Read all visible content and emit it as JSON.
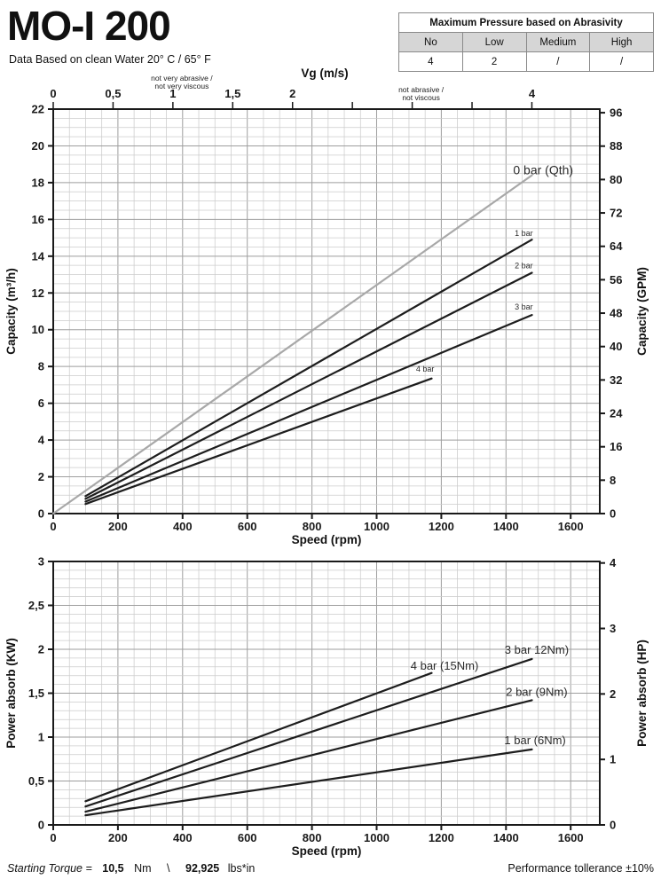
{
  "header": {
    "title": "MO-I 200",
    "subtitle": "Data Based on clean Water 20° C  /  65° F"
  },
  "abrasivity_table": {
    "title": "Maximum Pressure based on Abrasivity",
    "columns": [
      "No",
      "Low",
      "Medium",
      "High"
    ],
    "values": [
      "4",
      "2",
      "/",
      "/"
    ],
    "header_fill": "#d6d6d6"
  },
  "footer": {
    "starting_torque_label": "Starting Torque =",
    "torque_nm_value": "10,5",
    "torque_nm_unit": "Nm",
    "separator": "\\",
    "torque_lbs_value": "92,925",
    "torque_lbs_unit": "lbs*in",
    "tolerance": "Performance tollerance ±10%"
  },
  "colors": {
    "line_dark": "#1d1d1d",
    "line_qth_gray": "#a8a8a8",
    "grid_minor": "#cccccc",
    "grid_major": "#9e9e9e",
    "axis": "#1a1a1a"
  },
  "chart_data": [
    {
      "id": "capacity",
      "type": "line",
      "xlabel": "Speed (rpm)",
      "ylabel": "Capacity (m³/h)",
      "ylabel_right": "Capacity (GPM)",
      "xlim": [
        0,
        1690
      ],
      "ylim": [
        0,
        22
      ],
      "grid": {
        "minor_x": 50,
        "major_x": 200,
        "minor_y": 0.5,
        "major_y": 2
      },
      "x_ticks": {
        "values": [
          0,
          200,
          400,
          600,
          800,
          1000,
          1200,
          1400,
          1600
        ],
        "labels": [
          "0",
          "200",
          "400",
          "600",
          "800",
          "1000",
          "1200",
          "1400",
          "1600"
        ]
      },
      "y_ticks": {
        "values": [
          0,
          2,
          4,
          6,
          8,
          10,
          12,
          14,
          16,
          18,
          20,
          22
        ],
        "labels": [
          "0",
          "2",
          "4",
          "6",
          "8",
          "10",
          "12",
          "14",
          "16",
          "18",
          "20",
          "22"
        ]
      },
      "right_axis": {
        "factor": 0.22712,
        "values": [
          0,
          8,
          16,
          24,
          32,
          40,
          48,
          56,
          64,
          72,
          80,
          88,
          96
        ],
        "labels": [
          "0",
          "8",
          "16",
          "24",
          "32",
          "40",
          "48",
          "56",
          "64",
          "72",
          "80",
          "88",
          "96"
        ]
      },
      "top_axis": {
        "label": "Vg (m/s)",
        "rpm_per_ms": 370,
        "tick_values": [
          0,
          0.5,
          1,
          1.5,
          2,
          2.5,
          3,
          3.5,
          4
        ],
        "tick_labels": [
          "0",
          "0,5",
          "1",
          "1,5",
          "2",
          "",
          "",
          "",
          "4"
        ],
        "annotations": [
          {
            "vg": 1,
            "dy": 0,
            "lines": [
              "not very abrasive /",
              "not very viscous"
            ]
          },
          {
            "vg": 3,
            "dy": 13,
            "lines": [
              "not  abrasive /",
              "not  viscous"
            ]
          }
        ]
      },
      "series": [
        {
          "name": "0 bar (Qth)",
          "color": "#a8a8a8",
          "points": [
            [
              0,
              0
            ],
            [
              1480,
              18.4
            ]
          ],
          "label": {
            "text": "0 bar (Qth)",
            "x": 1515,
            "y": 18.45,
            "size": 14
          }
        },
        {
          "name": "1 bar",
          "color": "#1d1d1d",
          "points": [
            [
              100,
              0.95
            ],
            [
              1480,
              14.9
            ]
          ],
          "label": {
            "text": "1 bar",
            "x": 1455,
            "y": 15.1,
            "size": 9
          }
        },
        {
          "name": "2 bar",
          "color": "#1d1d1d",
          "points": [
            [
              100,
              0.8
            ],
            [
              1480,
              13.1
            ]
          ],
          "label": {
            "text": "2 bar",
            "x": 1455,
            "y": 13.35,
            "size": 9
          }
        },
        {
          "name": "3 bar",
          "color": "#1d1d1d",
          "points": [
            [
              100,
              0.65
            ],
            [
              1480,
              10.8
            ]
          ],
          "label": {
            "text": "3 bar",
            "x": 1455,
            "y": 11.1,
            "size": 9
          }
        },
        {
          "name": "4 bar",
          "color": "#1d1d1d",
          "points": [
            [
              100,
              0.52
            ],
            [
              1170,
              7.35
            ]
          ],
          "label": {
            "text": "4 bar",
            "x": 1150,
            "y": 7.72,
            "size": 9
          }
        }
      ]
    },
    {
      "id": "power",
      "type": "line",
      "xlabel": "Speed (rpm)",
      "ylabel": "Power absorb (KW)",
      "ylabel_right": "Power absorb (HP)",
      "xlim": [
        0,
        1690
      ],
      "ylim": [
        0,
        3
      ],
      "grid": {
        "minor_x": 50,
        "major_x": 200,
        "minor_y": 0.1,
        "major_y": 0.5
      },
      "x_ticks": {
        "values": [
          0,
          200,
          400,
          600,
          800,
          1000,
          1200,
          1400,
          1600
        ],
        "labels": [
          "0",
          "200",
          "400",
          "600",
          "800",
          "1000",
          "1200",
          "1400",
          "1600"
        ]
      },
      "y_ticks": {
        "values": [
          0,
          0.5,
          1,
          1.5,
          2,
          2.5,
          3
        ],
        "labels": [
          "0",
          "0,5",
          "1",
          "1,5",
          "2",
          "2,5",
          "3"
        ]
      },
      "right_axis": {
        "factor": 0.7457,
        "values": [
          0,
          1,
          2,
          3,
          4
        ],
        "labels": [
          "0",
          "1",
          "2",
          "3",
          "4"
        ]
      },
      "series": [
        {
          "name": "4 bar (15Nm)",
          "color": "#1d1d1d",
          "points": [
            [
              100,
              0.27
            ],
            [
              1170,
              1.73
            ]
          ],
          "label": {
            "text": "4 bar (15Nm)",
            "x": 1210,
            "y": 1.77,
            "size": 13
          }
        },
        {
          "name": "3 bar 12Nm)",
          "color": "#1d1d1d",
          "points": [
            [
              100,
              0.21
            ],
            [
              1480,
              1.89
            ]
          ],
          "label": {
            "text": "3 bar 12Nm)",
            "x": 1495,
            "y": 1.95,
            "size": 13
          }
        },
        {
          "name": "2 bar (9Nm)",
          "color": "#1d1d1d",
          "points": [
            [
              100,
              0.15
            ],
            [
              1480,
              1.42
            ]
          ],
          "label": {
            "text": "2 bar (9Nm)",
            "x": 1495,
            "y": 1.47,
            "size": 13
          }
        },
        {
          "name": "1 bar (6Nm)",
          "color": "#1d1d1d",
          "points": [
            [
              100,
              0.11
            ],
            [
              1480,
              0.86
            ]
          ],
          "label": {
            "text": "1 bar (6Nm)",
            "x": 1490,
            "y": 0.92,
            "size": 13
          }
        }
      ]
    }
  ]
}
